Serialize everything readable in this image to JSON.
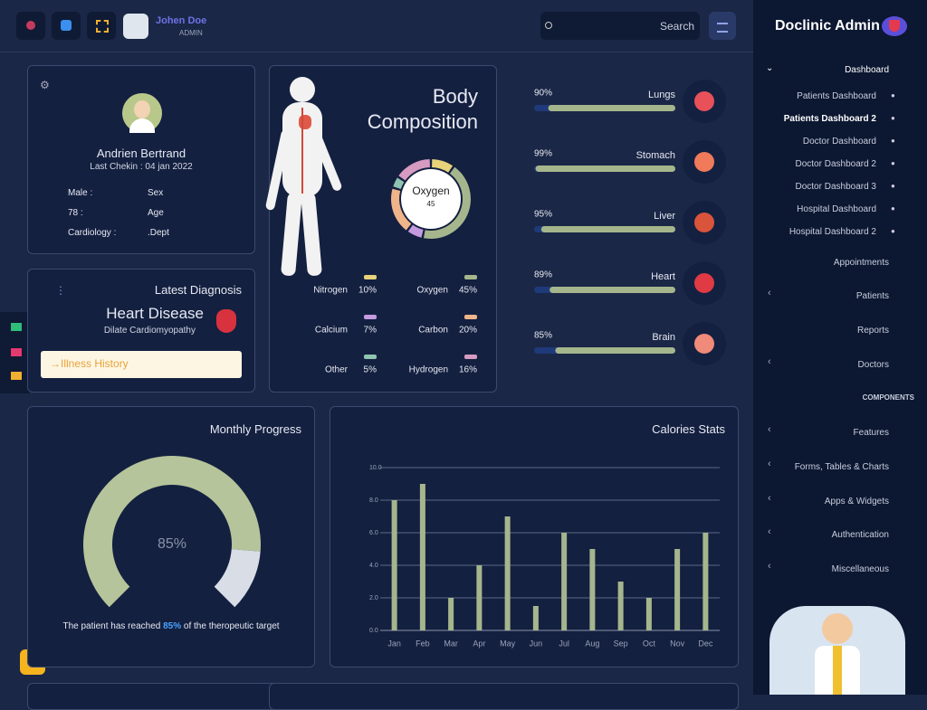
{
  "header": {
    "user_name": "Johen Doe",
    "user_role": "ADMIN",
    "search_placeholder": "Search"
  },
  "sidebar": {
    "brand": "Doclinic Admin",
    "dashboard": {
      "label": "Dashboard",
      "children": [
        "Patients Dashboard",
        "Patients Dashboard 2",
        "Doctor Dashboard",
        "Doctor Dashboard 2",
        "Doctor Dashboard 3",
        "Hospital Dashboard",
        "Hospital Dashboard 2"
      ]
    },
    "items": [
      "Appointments",
      "Patients",
      "Reports",
      "Doctors"
    ],
    "section": "COMPONENTS",
    "components": [
      "Features",
      "Forms, Tables & Charts",
      "Apps & Widgets",
      "Authentication",
      "Miscellaneous"
    ]
  },
  "patient": {
    "name": "Andrien Bertrand",
    "checkin": "Last Chekin : 04 jan 2022",
    "details": [
      [
        "Male :",
        "Sex"
      ],
      [
        "78 :",
        "Age"
      ],
      [
        "Cardiology :",
        ".Dept"
      ]
    ]
  },
  "diagnosis": {
    "title": "Latest Diagnosis",
    "disease": "Heart Disease",
    "subtitle": "Dilate Cardiomyopathy",
    "button": "Illness History"
  },
  "body_composition": {
    "type": "donut",
    "title": "Body Composition",
    "categories": [
      "Nitrogen",
      "Oxygen",
      "Calcium",
      "Carbon",
      "Other",
      "Hydrogen"
    ],
    "values": [
      10,
      45,
      7,
      20,
      5,
      16
    ],
    "value_labels": [
      "10%",
      "45%",
      "7%",
      "20%",
      "5%",
      "16%"
    ],
    "colors": [
      "#e8d27a",
      "#a5b68d",
      "#c49be0",
      "#f0b48a",
      "#8fc4b0",
      "#d59bc0"
    ]
  },
  "organs": {
    "type": "progress",
    "categories": [
      "Lungs",
      "Stomach",
      "Liver",
      "Heart",
      "Brain"
    ],
    "values": [
      90,
      99,
      95,
      89,
      85
    ],
    "value_labels": [
      "90%",
      "99%",
      "95%",
      "89%",
      "85%"
    ],
    "color": "#a5b68d"
  },
  "monthly_progress": {
    "type": "gauge",
    "title": "Monthly Progress",
    "value": 85,
    "value_label": "85%",
    "caption_before": "The patient has reached",
    "caption_after": "of the theropeutic target"
  },
  "calories": {
    "type": "bar",
    "title": "Calories Stats",
    "categories": [
      "Jan",
      "Feb",
      "Mar",
      "Apr",
      "May",
      "Jun",
      "Jul",
      "Aug",
      "Sep",
      "Oct",
      "Nov",
      "Dec"
    ],
    "values": [
      8,
      9,
      2,
      4,
      7,
      1.5,
      6,
      5,
      3,
      2,
      5,
      6
    ],
    "color": "#a5b68d",
    "ylim": [
      0,
      10
    ],
    "yticks": [
      {
        "value": 0,
        "label": "0.0"
      },
      {
        "value": 2,
        "label": "2.0"
      },
      {
        "value": 4,
        "label": "4.0"
      },
      {
        "value": 6,
        "label": "6.0"
      },
      {
        "value": 8,
        "label": "8.0"
      },
      {
        "value": 10,
        "label": "10.0"
      }
    ],
    "grid": true
  }
}
